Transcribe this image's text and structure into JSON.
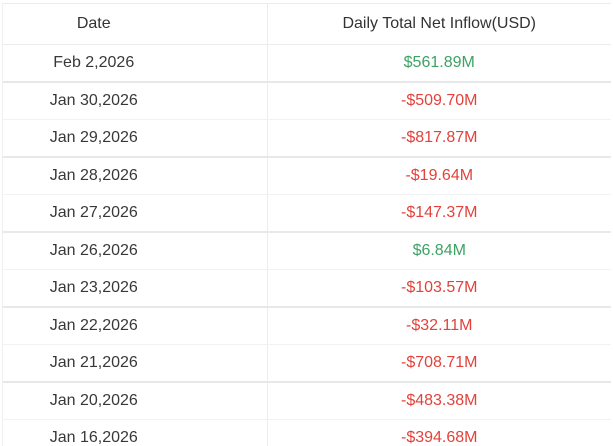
{
  "table": {
    "columns": [
      {
        "label": "Date"
      },
      {
        "label": "Daily Total Net Inflow(USD)"
      }
    ],
    "rows": [
      {
        "date": "Feb 2,2026",
        "value": "$561.89M",
        "direction": "positive"
      },
      {
        "date": "Jan 30,2026",
        "value": "-$509.70M",
        "direction": "negative"
      },
      {
        "date": "Jan 29,2026",
        "value": "-$817.87M",
        "direction": "negative"
      },
      {
        "date": "Jan 28,2026",
        "value": "-$19.64M",
        "direction": "negative"
      },
      {
        "date": "Jan 27,2026",
        "value": "-$147.37M",
        "direction": "negative"
      },
      {
        "date": "Jan 26,2026",
        "value": "$6.84M",
        "direction": "positive"
      },
      {
        "date": "Jan 23,2026",
        "value": "-$103.57M",
        "direction": "negative"
      },
      {
        "date": "Jan 22,2026",
        "value": "-$32.11M",
        "direction": "negative"
      },
      {
        "date": "Jan 21,2026",
        "value": "-$708.71M",
        "direction": "negative"
      },
      {
        "date": "Jan 20,2026",
        "value": "-$483.38M",
        "direction": "negative"
      },
      {
        "date": "Jan 16,2026",
        "value": "-$394.68M",
        "direction": "negative"
      }
    ],
    "colors": {
      "positive": "#3da263",
      "negative": "#e2423b",
      "header_text": "#333333",
      "date_text": "#383838",
      "divider": "#ececec"
    }
  }
}
